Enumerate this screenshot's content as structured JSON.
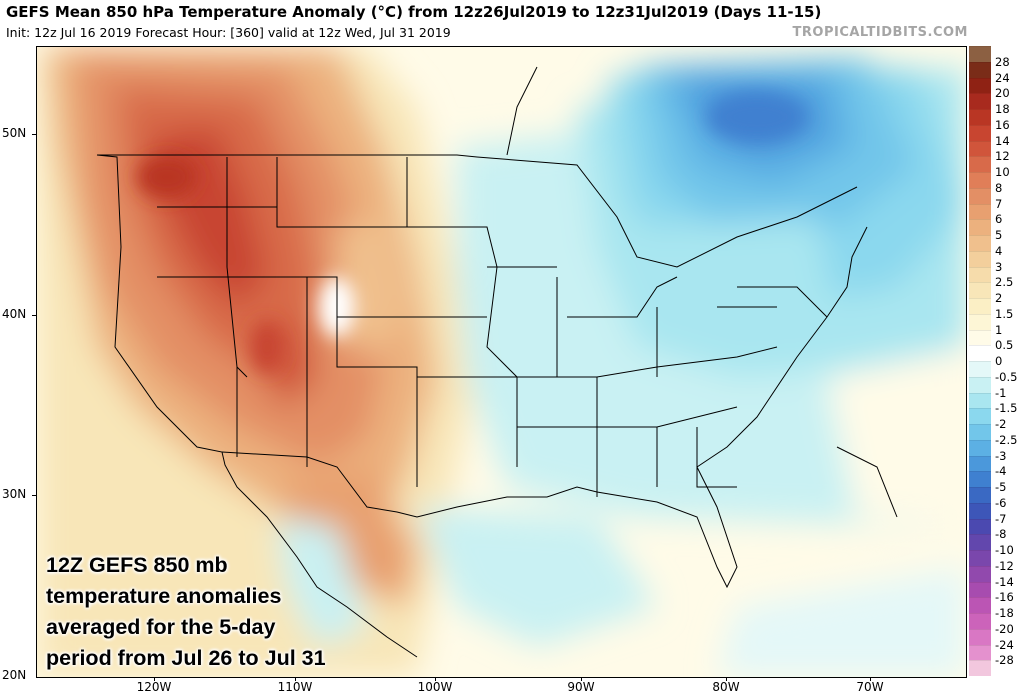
{
  "header": {
    "title": "GEFS Mean 850 hPa Temperature Anomaly (°C) from 12z26Jul2019 to 12z31Jul2019 (Days 11-15)",
    "subtitle": "Init: 12z Jul 16 2019   Forecast Hour: [360]   valid at 12z Wed, Jul 31 2019",
    "brand": "TROPICALTIDBITS.COM"
  },
  "axes": {
    "lat_labels": [
      "50N",
      "40N",
      "30N",
      "20N"
    ],
    "lon_labels": [
      "120W",
      "110W",
      "100W",
      "90W",
      "80W",
      "70W"
    ]
  },
  "legend": {
    "labels": [
      "28",
      "24",
      "20",
      "18",
      "16",
      "14",
      "12",
      "10",
      "8",
      "7",
      "6",
      "5",
      "4",
      "3",
      "2.5",
      "2",
      "1.5",
      "1",
      "0.5",
      "0",
      "-0.5",
      "-1",
      "-1.5",
      "-2",
      "-2.5",
      "-3",
      "-4",
      "-5",
      "-6",
      "-7",
      "-8",
      "-10",
      "-12",
      "-14",
      "-16",
      "-18",
      "-20",
      "-24",
      "-28"
    ],
    "colors": [
      "#8c6042",
      "#7a2c18",
      "#8f2214",
      "#a82a1e",
      "#b93624",
      "#c84530",
      "#d0553b",
      "#d86a4a",
      "#e07e58",
      "#e38f65",
      "#e8a070",
      "#ecb17e",
      "#f0c08d",
      "#f3cf9c",
      "#f6dcab",
      "#f8e6b8",
      "#fbefc5",
      "#fdf6d6",
      "#fffbe8",
      "#ffffff",
      "#e4f8f8",
      "#c9f1f3",
      "#a9e6f0",
      "#8bd8ee",
      "#72c6ea",
      "#5cb0e4",
      "#4b98db",
      "#3f80d0",
      "#3a69c3",
      "#3d56b8",
      "#4b49b0",
      "#6247ad",
      "#7a47ac",
      "#9149ad",
      "#a74caf",
      "#bb55b4",
      "#cc63ba",
      "#d977c4",
      "#e491ce"
    ]
  },
  "annotation": {
    "lines": [
      "12Z GEFS 850 mb",
      "temperature anomalies",
      "averaged for the 5-day",
      "period from Jul 26 to Jul 31"
    ]
  }
}
